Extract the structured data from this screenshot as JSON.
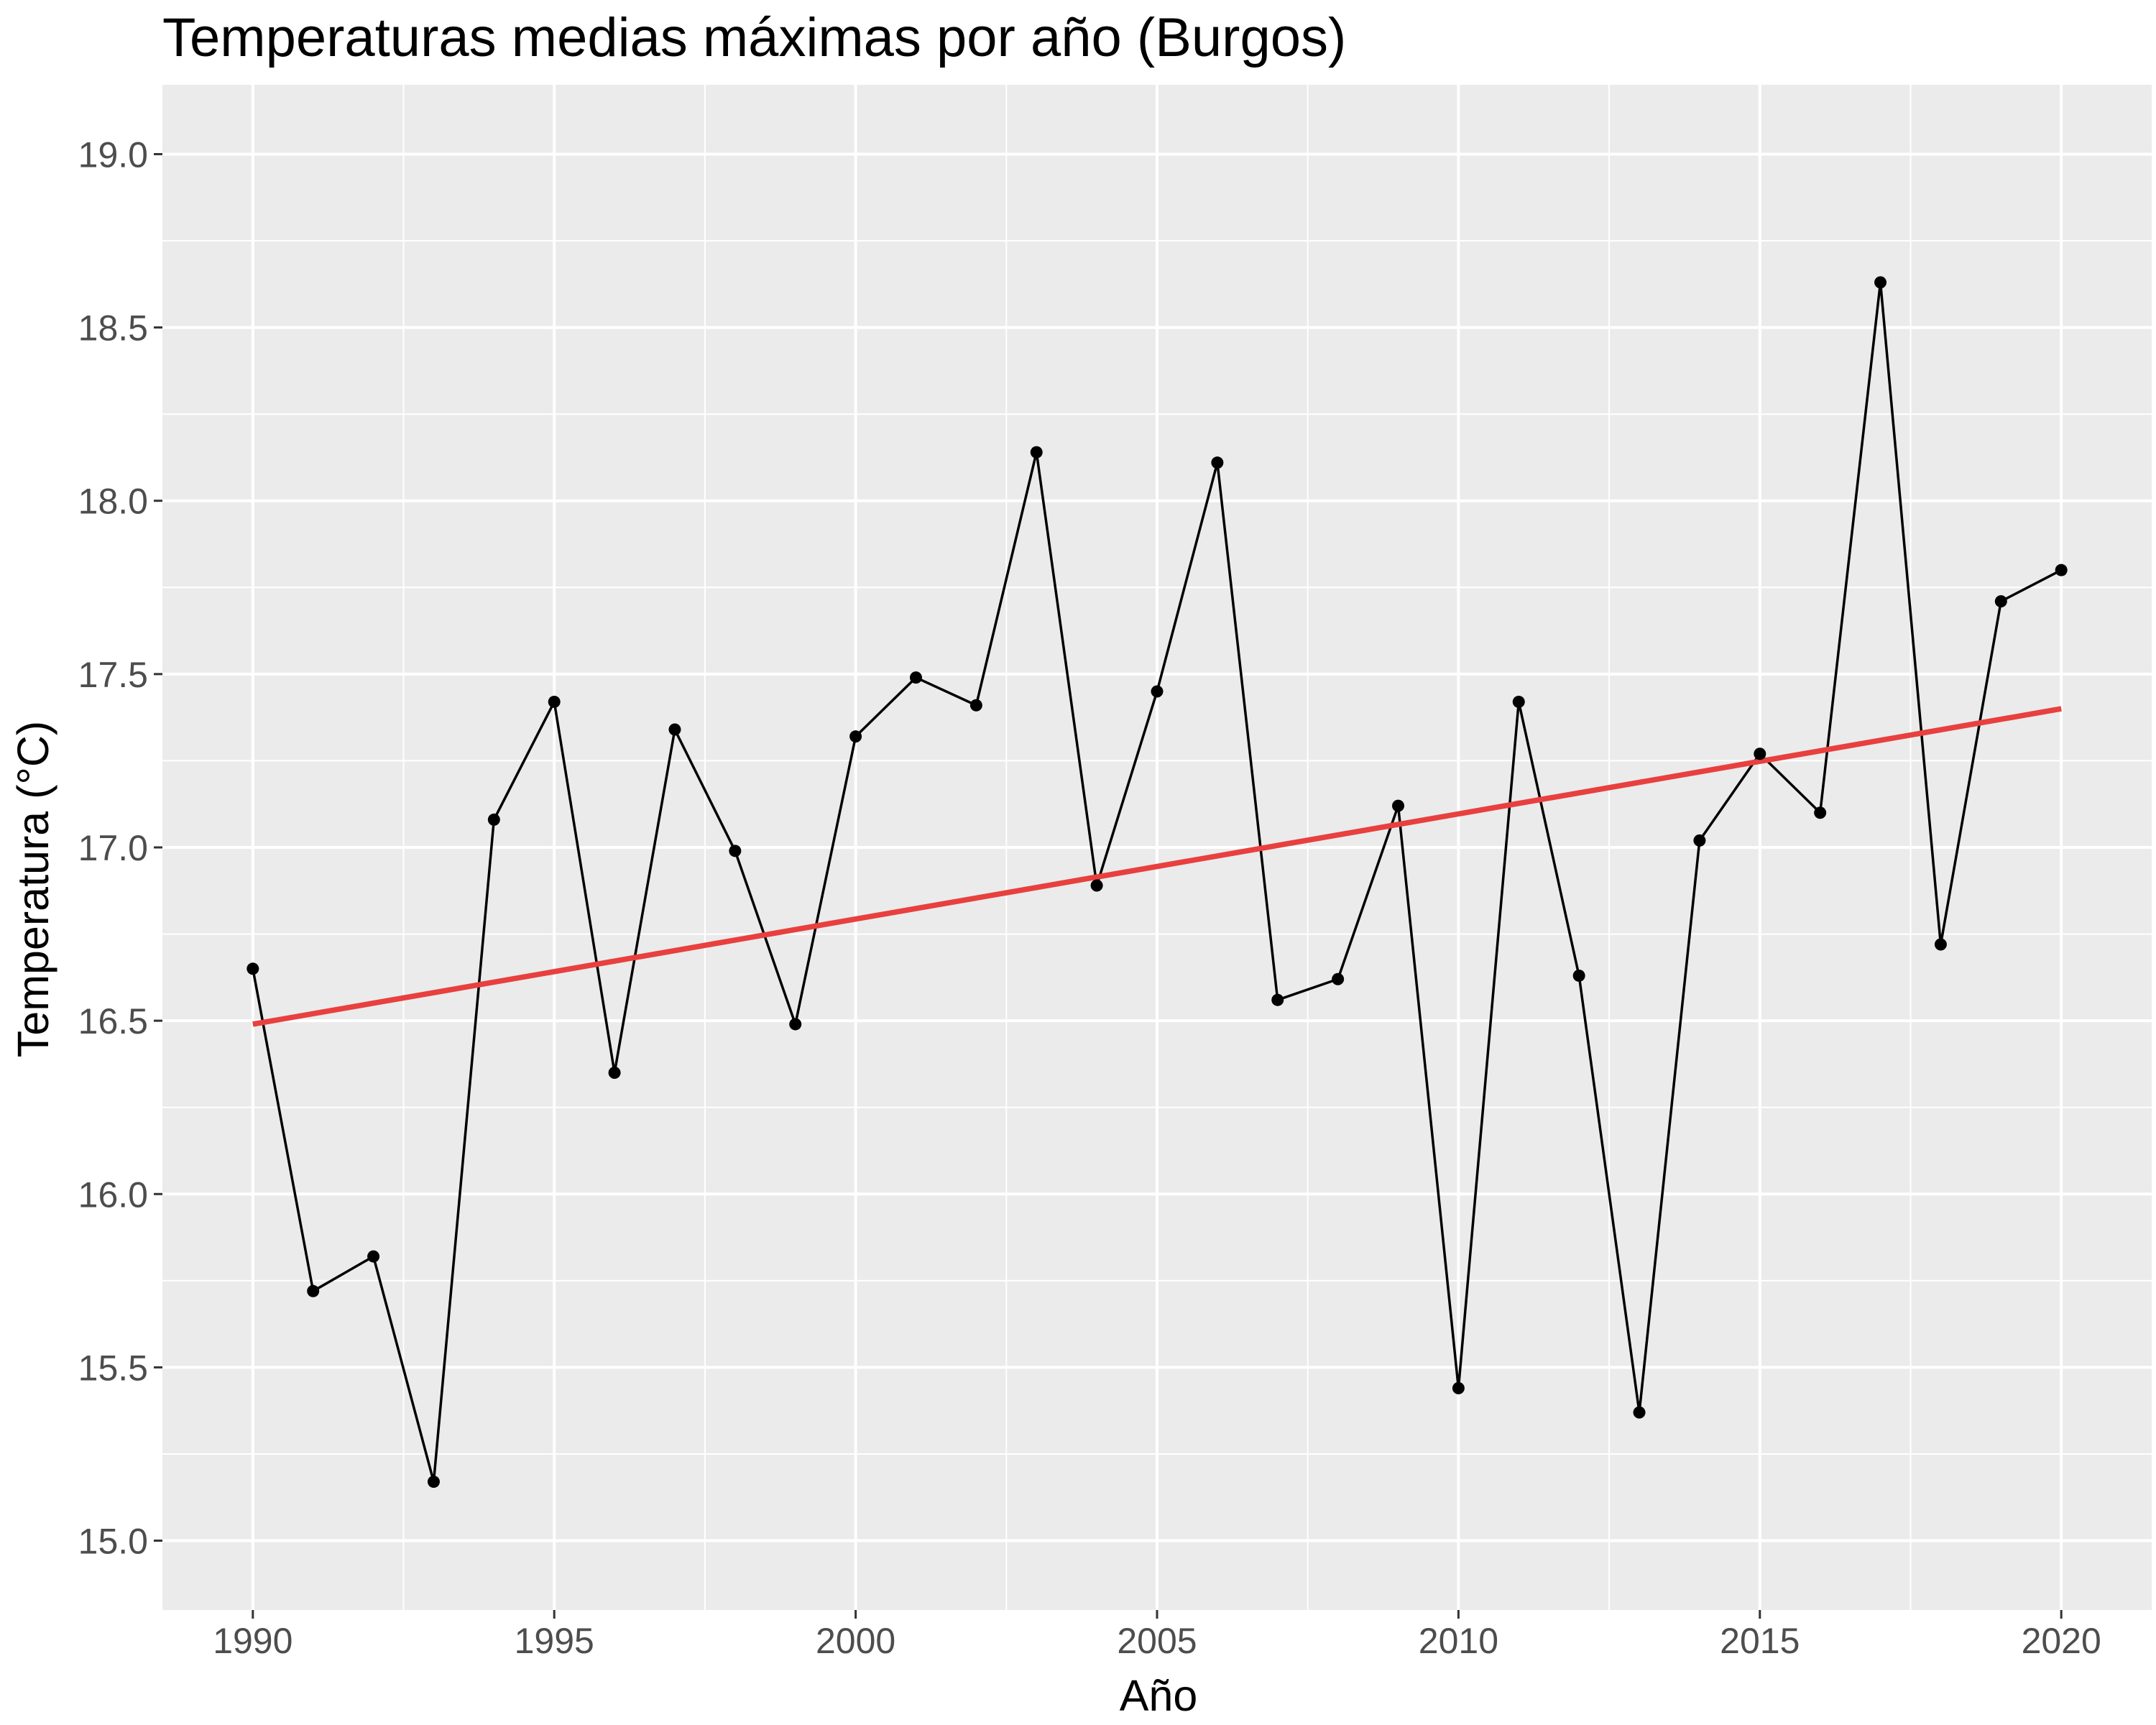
{
  "chart_data": {
    "type": "line",
    "title": "Temperaturas medias máximas por año (Burgos)",
    "xlabel": "Año",
    "ylabel": "Temperatura (°C)",
    "xlim": [
      1988.5,
      2021.5
    ],
    "ylim": [
      14.8,
      19.2
    ],
    "x_ticks": [
      1990,
      1995,
      2000,
      2005,
      2010,
      2015,
      2020
    ],
    "x_tick_labels": [
      "1990",
      "1995",
      "2000",
      "2005",
      "2010",
      "2015",
      "2020"
    ],
    "y_ticks": [
      15.0,
      15.5,
      16.0,
      16.5,
      17.0,
      17.5,
      18.0,
      18.5,
      19.0
    ],
    "y_tick_labels": [
      "15.0",
      "15.5",
      "16.0",
      "16.5",
      "17.0",
      "17.5",
      "18.0",
      "18.5",
      "19.0"
    ],
    "grid": true,
    "colors": {
      "panel": "#ebebeb",
      "grid": "#ffffff",
      "line": "#000000",
      "trend": "#e8403e"
    },
    "x": [
      1990,
      1991,
      1992,
      1993,
      1994,
      1995,
      1996,
      1997,
      1998,
      1999,
      2000,
      2001,
      2002,
      2003,
      2004,
      2005,
      2006,
      2007,
      2008,
      2009,
      2010,
      2011,
      2012,
      2013,
      2014,
      2015,
      2016,
      2017,
      2018,
      2019,
      2020
    ],
    "values": [
      16.65,
      15.72,
      15.82,
      15.17,
      17.08,
      17.42,
      16.35,
      17.34,
      16.99,
      16.49,
      17.32,
      17.49,
      17.41,
      18.14,
      16.89,
      17.45,
      18.11,
      16.56,
      16.62,
      17.12,
      15.44,
      17.42,
      16.63,
      15.37,
      17.02,
      17.27,
      17.1,
      18.63,
      16.72,
      17.71,
      17.8
    ],
    "trend": {
      "x": [
        1990,
        2020
      ],
      "y": [
        16.49,
        17.4
      ]
    }
  }
}
